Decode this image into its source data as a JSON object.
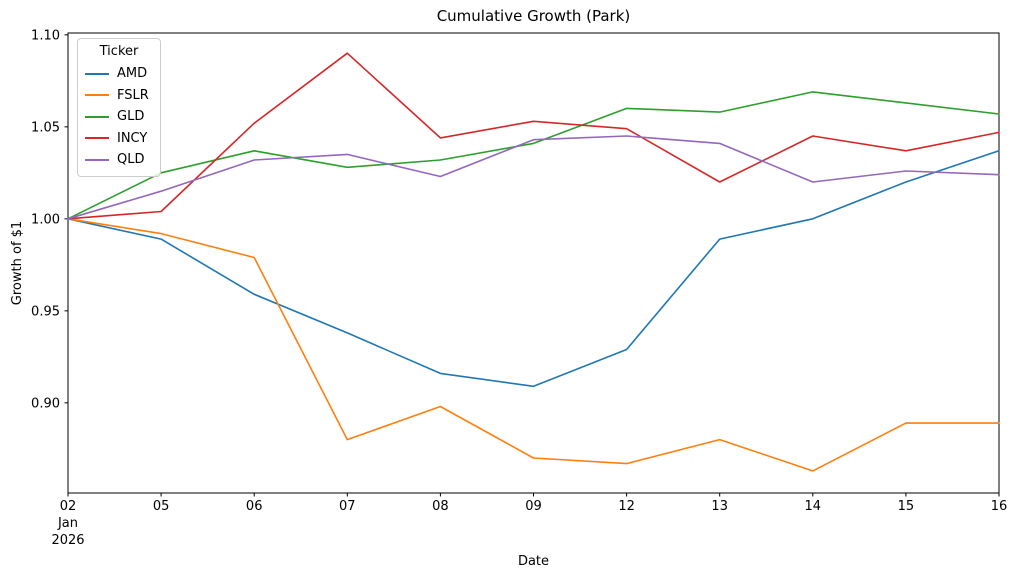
{
  "figure": {
    "title": "Cumulative Growth (Park)",
    "xlabel": "Date",
    "ylabel": "Growth of $1"
  },
  "legend": {
    "title": "Ticker",
    "position": "upper left"
  },
  "chart_data": {
    "type": "line",
    "title": "Cumulative Growth (Park)",
    "xlabel": "Date",
    "ylabel": "Growth of $1",
    "x_tick_labels": [
      "02",
      "05",
      "06",
      "07",
      "08",
      "09",
      "12",
      "13",
      "14",
      "15",
      "16"
    ],
    "x_first_tick_sublabels": [
      "Jan",
      "2026"
    ],
    "y_ticks": [
      0.9,
      0.95,
      1.0,
      1.05,
      1.1
    ],
    "ylim": [
      0.851,
      1.101
    ],
    "grid": false,
    "legend_title": "Ticker",
    "legend_position": "upper left",
    "series": [
      {
        "name": "AMD",
        "color": "#1f77b4",
        "values": [
          1.0,
          0.989,
          0.959,
          0.938,
          0.916,
          0.909,
          0.929,
          0.989,
          1.0,
          1.02,
          1.037
        ]
      },
      {
        "name": "FSLR",
        "color": "#ff7f0e",
        "values": [
          1.0,
          0.992,
          0.979,
          0.88,
          0.898,
          0.87,
          0.867,
          0.88,
          0.863,
          0.889,
          0.889
        ]
      },
      {
        "name": "GLD",
        "color": "#2ca02c",
        "values": [
          1.0,
          1.025,
          1.037,
          1.028,
          1.032,
          1.041,
          1.06,
          1.058,
          1.069,
          1.063,
          1.057
        ]
      },
      {
        "name": "INCY",
        "color": "#d62728",
        "values": [
          1.0,
          1.004,
          1.052,
          1.09,
          1.044,
          1.053,
          1.049,
          1.02,
          1.045,
          1.037,
          1.047
        ]
      },
      {
        "name": "QLD",
        "color": "#9467bd",
        "values": [
          1.0,
          1.015,
          1.032,
          1.035,
          1.023,
          1.043,
          1.045,
          1.041,
          1.02,
          1.026,
          1.024
        ]
      }
    ]
  }
}
